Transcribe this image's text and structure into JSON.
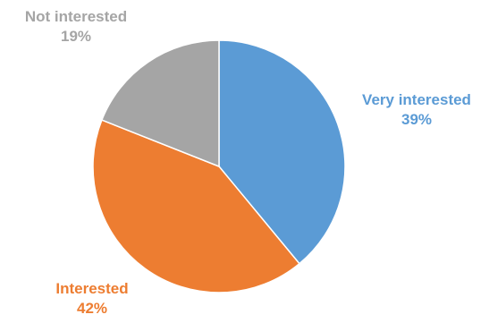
{
  "chart_data": {
    "type": "pie",
    "title": "",
    "start_angle_deg": 0,
    "direction": "clockwise",
    "slices": [
      {
        "label": "Very interested",
        "value": 39,
        "value_label": "39%",
        "color": "#5B9BD5"
      },
      {
        "label": "Interested",
        "value": 42,
        "value_label": "42%",
        "color": "#ED7D31"
      },
      {
        "label": "Not interested",
        "value": 19,
        "value_label": "19%",
        "color": "#A5A5A5"
      }
    ],
    "legend": "none",
    "data_labels": "outside, category name and percentage"
  }
}
